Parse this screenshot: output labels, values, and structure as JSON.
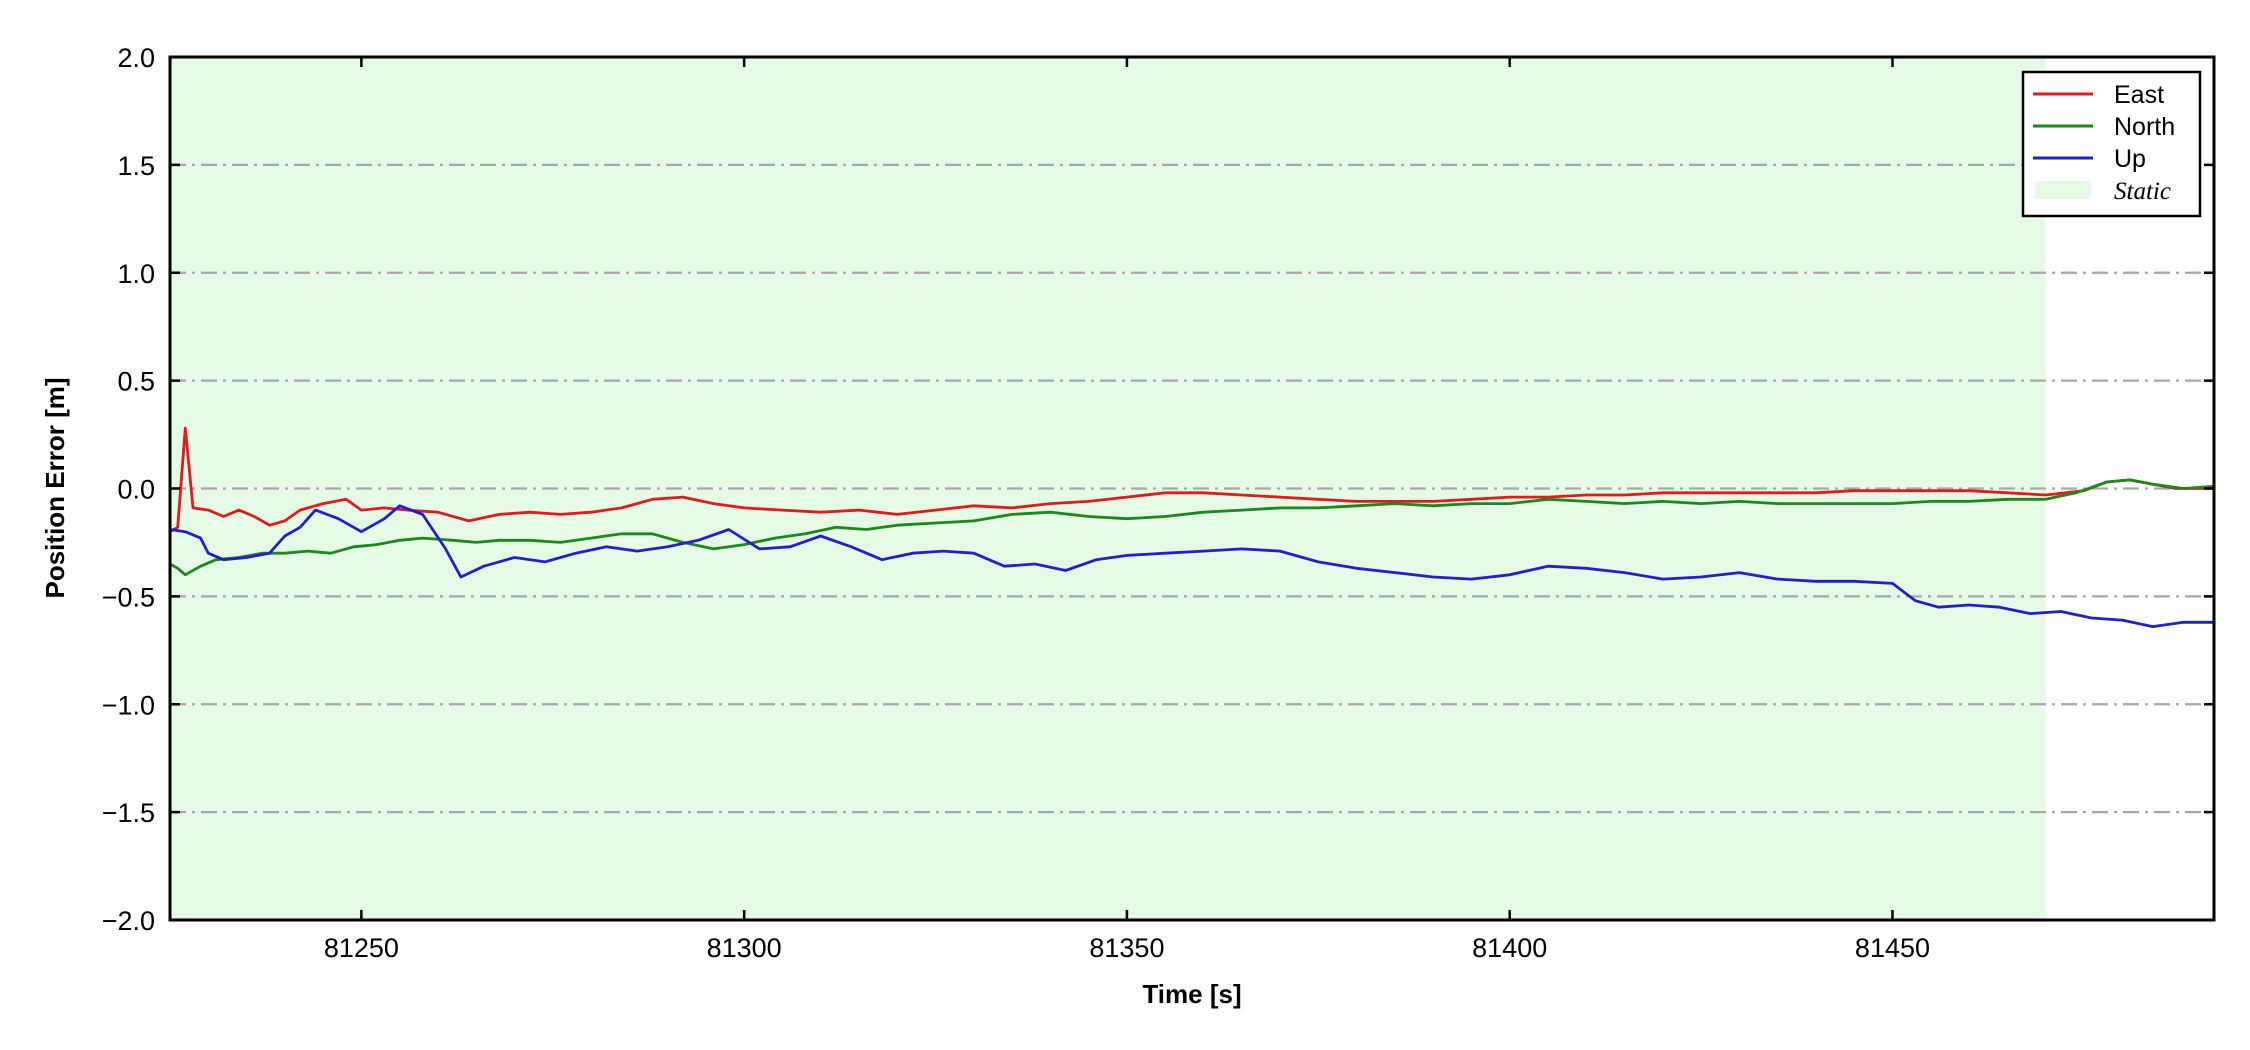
{
  "chart_data": {
    "type": "line",
    "title": "",
    "xlabel": "Time [s]",
    "ylabel": "Position Error [m]",
    "xlim": [
      81225,
      81492
    ],
    "ylim": [
      -2.0,
      2.0
    ],
    "x_ticks": [
      81250,
      81300,
      81350,
      81400,
      81450
    ],
    "x_tick_labels": [
      "81250",
      "81300",
      "81350",
      "81400",
      "81450"
    ],
    "y_ticks": [
      2.0,
      1.5,
      1.0,
      0.5,
      0.0,
      -0.5,
      -1.0,
      -1.5,
      -2.0
    ],
    "y_tick_labels": [
      "2.0",
      "1.5",
      "1.0",
      "0.5",
      "0.0",
      "−0.5",
      "−1.0",
      "−1.5",
      "−2.0"
    ],
    "grid": "horizontal dash-dot",
    "legend_position": "top-right",
    "shaded_region": {
      "label": "Static",
      "x_start": 81225,
      "x_end": 81470,
      "color": "#e6fbe6"
    },
    "series": [
      {
        "name": "East",
        "color": "#e31a1c",
        "points": [
          [
            81225,
            -0.2
          ],
          [
            81226,
            -0.18
          ],
          [
            81227,
            0.28
          ],
          [
            81228,
            -0.09
          ],
          [
            81230,
            -0.1
          ],
          [
            81232,
            -0.13
          ],
          [
            81234,
            -0.1
          ],
          [
            81236,
            -0.13
          ],
          [
            81238,
            -0.17
          ],
          [
            81240,
            -0.15
          ],
          [
            81242,
            -0.1
          ],
          [
            81245,
            -0.07
          ],
          [
            81248,
            -0.05
          ],
          [
            81250,
            -0.1
          ],
          [
            81253,
            -0.09
          ],
          [
            81256,
            -0.1
          ],
          [
            81260,
            -0.11
          ],
          [
            81264,
            -0.15
          ],
          [
            81268,
            -0.12
          ],
          [
            81272,
            -0.11
          ],
          [
            81276,
            -0.12
          ],
          [
            81280,
            -0.11
          ],
          [
            81284,
            -0.09
          ],
          [
            81288,
            -0.05
          ],
          [
            81292,
            -0.04
          ],
          [
            81296,
            -0.07
          ],
          [
            81300,
            -0.09
          ],
          [
            81305,
            -0.1
          ],
          [
            81310,
            -0.11
          ],
          [
            81315,
            -0.1
          ],
          [
            81320,
            -0.12
          ],
          [
            81325,
            -0.1
          ],
          [
            81330,
            -0.08
          ],
          [
            81335,
            -0.09
          ],
          [
            81340,
            -0.07
          ],
          [
            81345,
            -0.06
          ],
          [
            81350,
            -0.04
          ],
          [
            81355,
            -0.02
          ],
          [
            81360,
            -0.02
          ],
          [
            81365,
            -0.03
          ],
          [
            81370,
            -0.04
          ],
          [
            81375,
            -0.05
          ],
          [
            81380,
            -0.06
          ],
          [
            81385,
            -0.06
          ],
          [
            81390,
            -0.06
          ],
          [
            81395,
            -0.05
          ],
          [
            81400,
            -0.04
          ],
          [
            81405,
            -0.04
          ],
          [
            81410,
            -0.03
          ],
          [
            81415,
            -0.03
          ],
          [
            81420,
            -0.02
          ],
          [
            81425,
            -0.02
          ],
          [
            81430,
            -0.02
          ],
          [
            81435,
            -0.02
          ],
          [
            81440,
            -0.02
          ],
          [
            81445,
            -0.01
          ],
          [
            81450,
            -0.01
          ],
          [
            81455,
            -0.01
          ],
          [
            81460,
            -0.01
          ],
          [
            81465,
            -0.02
          ],
          [
            81470,
            -0.03
          ],
          [
            81475,
            -0.01
          ],
          [
            81478,
            0.03
          ],
          [
            81481,
            0.04
          ],
          [
            81484,
            0.02
          ],
          [
            81487,
            0.0
          ],
          [
            81492,
            0.0
          ]
        ]
      },
      {
        "name": "North",
        "color": "#1a8a1a",
        "points": [
          [
            81225,
            -0.35
          ],
          [
            81226,
            -0.37
          ],
          [
            81227,
            -0.4
          ],
          [
            81229,
            -0.36
          ],
          [
            81231,
            -0.33
          ],
          [
            81234,
            -0.32
          ],
          [
            81237,
            -0.3
          ],
          [
            81240,
            -0.3
          ],
          [
            81243,
            -0.29
          ],
          [
            81246,
            -0.3
          ],
          [
            81249,
            -0.27
          ],
          [
            81252,
            -0.26
          ],
          [
            81255,
            -0.24
          ],
          [
            81258,
            -0.23
          ],
          [
            81262,
            -0.24
          ],
          [
            81265,
            -0.25
          ],
          [
            81268,
            -0.24
          ],
          [
            81272,
            -0.24
          ],
          [
            81276,
            -0.25
          ],
          [
            81280,
            -0.23
          ],
          [
            81284,
            -0.21
          ],
          [
            81288,
            -0.21
          ],
          [
            81292,
            -0.25
          ],
          [
            81296,
            -0.28
          ],
          [
            81300,
            -0.26
          ],
          [
            81304,
            -0.23
          ],
          [
            81308,
            -0.21
          ],
          [
            81312,
            -0.18
          ],
          [
            81316,
            -0.19
          ],
          [
            81320,
            -0.17
          ],
          [
            81325,
            -0.16
          ],
          [
            81330,
            -0.15
          ],
          [
            81335,
            -0.12
          ],
          [
            81340,
            -0.11
          ],
          [
            81345,
            -0.13
          ],
          [
            81350,
            -0.14
          ],
          [
            81355,
            -0.13
          ],
          [
            81360,
            -0.11
          ],
          [
            81365,
            -0.1
          ],
          [
            81370,
            -0.09
          ],
          [
            81375,
            -0.09
          ],
          [
            81380,
            -0.08
          ],
          [
            81385,
            -0.07
          ],
          [
            81390,
            -0.08
          ],
          [
            81395,
            -0.07
          ],
          [
            81400,
            -0.07
          ],
          [
            81405,
            -0.05
          ],
          [
            81410,
            -0.06
          ],
          [
            81415,
            -0.07
          ],
          [
            81420,
            -0.06
          ],
          [
            81425,
            -0.07
          ],
          [
            81430,
            -0.06
          ],
          [
            81435,
            -0.07
          ],
          [
            81440,
            -0.07
          ],
          [
            81445,
            -0.07
          ],
          [
            81450,
            -0.07
          ],
          [
            81455,
            -0.06
          ],
          [
            81460,
            -0.06
          ],
          [
            81465,
            -0.05
          ],
          [
            81470,
            -0.05
          ],
          [
            81474,
            -0.02
          ],
          [
            81478,
            0.03
          ],
          [
            81481,
            0.04
          ],
          [
            81484,
            0.02
          ],
          [
            81488,
            0.0
          ],
          [
            81492,
            0.01
          ]
        ]
      },
      {
        "name": "Up",
        "color": "#1f1fd6",
        "points": [
          [
            81225,
            -0.19
          ],
          [
            81227,
            -0.2
          ],
          [
            81229,
            -0.23
          ],
          [
            81230,
            -0.3
          ],
          [
            81232,
            -0.33
          ],
          [
            81235,
            -0.32
          ],
          [
            81238,
            -0.3
          ],
          [
            81240,
            -0.22
          ],
          [
            81242,
            -0.18
          ],
          [
            81244,
            -0.1
          ],
          [
            81247,
            -0.14
          ],
          [
            81250,
            -0.2
          ],
          [
            81253,
            -0.14
          ],
          [
            81255,
            -0.08
          ],
          [
            81258,
            -0.12
          ],
          [
            81261,
            -0.28
          ],
          [
            81263,
            -0.41
          ],
          [
            81266,
            -0.36
          ],
          [
            81270,
            -0.32
          ],
          [
            81274,
            -0.34
          ],
          [
            81278,
            -0.3
          ],
          [
            81282,
            -0.27
          ],
          [
            81286,
            -0.29
          ],
          [
            81290,
            -0.27
          ],
          [
            81294,
            -0.24
          ],
          [
            81298,
            -0.19
          ],
          [
            81302,
            -0.28
          ],
          [
            81306,
            -0.27
          ],
          [
            81310,
            -0.22
          ],
          [
            81314,
            -0.27
          ],
          [
            81318,
            -0.33
          ],
          [
            81322,
            -0.3
          ],
          [
            81326,
            -0.29
          ],
          [
            81330,
            -0.3
          ],
          [
            81334,
            -0.36
          ],
          [
            81338,
            -0.35
          ],
          [
            81342,
            -0.38
          ],
          [
            81346,
            -0.33
          ],
          [
            81350,
            -0.31
          ],
          [
            81355,
            -0.3
          ],
          [
            81360,
            -0.29
          ],
          [
            81365,
            -0.28
          ],
          [
            81370,
            -0.29
          ],
          [
            81375,
            -0.34
          ],
          [
            81380,
            -0.37
          ],
          [
            81385,
            -0.39
          ],
          [
            81390,
            -0.41
          ],
          [
            81395,
            -0.42
          ],
          [
            81400,
            -0.4
          ],
          [
            81405,
            -0.36
          ],
          [
            81410,
            -0.37
          ],
          [
            81415,
            -0.39
          ],
          [
            81420,
            -0.42
          ],
          [
            81425,
            -0.41
          ],
          [
            81430,
            -0.39
          ],
          [
            81435,
            -0.42
          ],
          [
            81440,
            -0.43
          ],
          [
            81445,
            -0.43
          ],
          [
            81450,
            -0.44
          ],
          [
            81453,
            -0.52
          ],
          [
            81456,
            -0.55
          ],
          [
            81460,
            -0.54
          ],
          [
            81464,
            -0.55
          ],
          [
            81468,
            -0.58
          ],
          [
            81472,
            -0.57
          ],
          [
            81476,
            -0.6
          ],
          [
            81480,
            -0.61
          ],
          [
            81484,
            -0.64
          ],
          [
            81488,
            -0.62
          ],
          [
            81492,
            -0.62
          ]
        ]
      }
    ]
  }
}
